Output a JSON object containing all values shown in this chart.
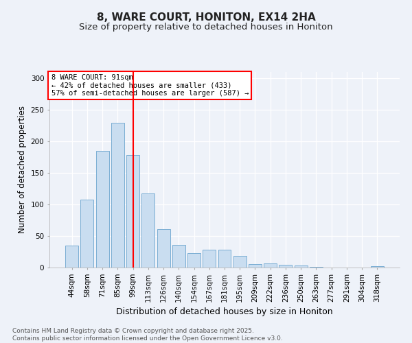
{
  "title": "8, WARE COURT, HONITON, EX14 2HA",
  "subtitle": "Size of property relative to detached houses in Honiton",
  "xlabel": "Distribution of detached houses by size in Honiton",
  "ylabel": "Number of detached properties",
  "categories": [
    "44sqm",
    "58sqm",
    "71sqm",
    "85sqm",
    "99sqm",
    "113sqm",
    "126sqm",
    "140sqm",
    "154sqm",
    "167sqm",
    "181sqm",
    "195sqm",
    "209sqm",
    "222sqm",
    "236sqm",
    "250sqm",
    "263sqm",
    "277sqm",
    "291sqm",
    "304sqm",
    "318sqm"
  ],
  "values": [
    35,
    108,
    185,
    230,
    178,
    118,
    61,
    36,
    23,
    28,
    28,
    18,
    5,
    7,
    4,
    3,
    1,
    0,
    0,
    0,
    2
  ],
  "bar_color": "#c9ddf0",
  "bar_edge_color": "#7aaed4",
  "vline_index": 4,
  "vline_color": "red",
  "annotation_text": "8 WARE COURT: 91sqm\n← 42% of detached houses are smaller (433)\n57% of semi-detached houses are larger (587) →",
  "annotation_box_color": "white",
  "annotation_box_edge": "red",
  "ylim": [
    0,
    310
  ],
  "yticks": [
    0,
    50,
    100,
    150,
    200,
    250,
    300
  ],
  "bg_color": "#eef2f9",
  "footer": "Contains HM Land Registry data © Crown copyright and database right 2025.\nContains public sector information licensed under the Open Government Licence v3.0.",
  "title_fontsize": 11,
  "subtitle_fontsize": 9.5,
  "xlabel_fontsize": 9,
  "ylabel_fontsize": 8.5,
  "tick_fontsize": 7.5,
  "footer_fontsize": 6.5,
  "annotation_fontsize": 7.5
}
